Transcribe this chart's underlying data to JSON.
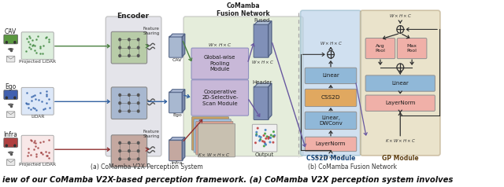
{
  "sub_caption_a": "(a) CoMamba V2X Perception System",
  "sub_caption_b": "(b) CoMamba Fusion Network",
  "bottom_text": "iew of our CoMamba V2X-based perception framework. (a) CoMamba V2X perception system involves",
  "encoder_bg": "#d2d2dc",
  "fusion_bg": "#ccdcb8",
  "css2d_bg": "#b8d0e8",
  "gp_bg": "#e0d4b0",
  "linear_color": "#90b8d8",
  "css2d_box_color": "#e0a860",
  "layernorm_color": "#f0b0a8",
  "pooling_color": "#c8b8d8",
  "scan_color": "#c8b8d8",
  "green_c": "#4a8040",
  "blue_c": "#3060a0",
  "red_c": "#903030",
  "purple_c": "#6858a0",
  "dark": "#303030"
}
